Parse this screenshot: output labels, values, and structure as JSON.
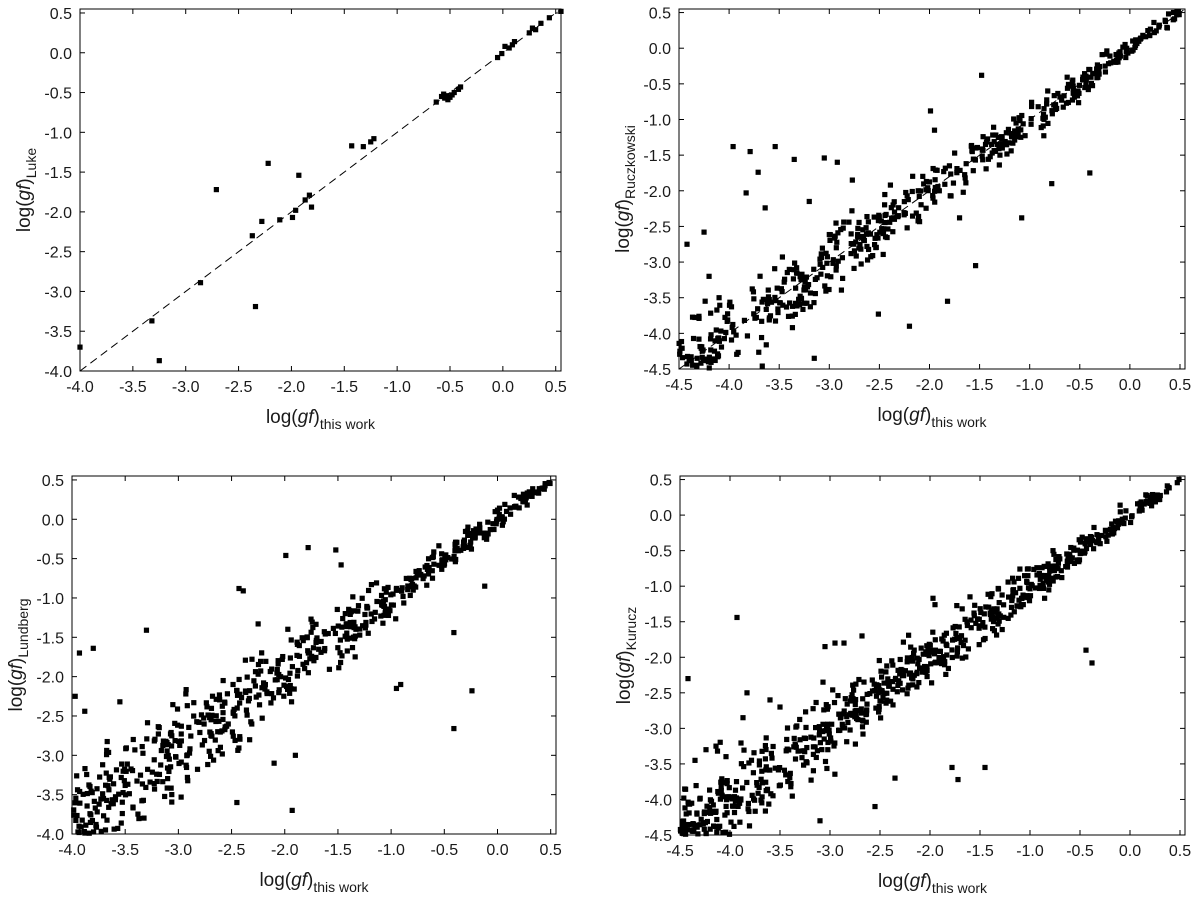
{
  "chart_data": [
    {
      "type": "scatter",
      "panel": "top-left",
      "xlabel": {
        "main": "log(",
        "ital": "gf",
        "close": ")",
        "sub": "this work"
      },
      "ylabel": {
        "main": "log(",
        "ital": "gf",
        "close": ")",
        "sub": "Luke"
      },
      "xlim": [
        -4.0,
        0.55
      ],
      "ylim": [
        -4.0,
        0.55
      ],
      "xticks": [
        -4.0,
        -3.5,
        -3.0,
        -2.5,
        -2.0,
        -1.5,
        -1.0,
        -0.5,
        0.0,
        0.5
      ],
      "yticks": [
        -4.0,
        -3.5,
        -3.0,
        -2.5,
        -2.0,
        -1.5,
        -1.0,
        -0.5,
        0.0,
        0.5
      ],
      "xtick_labels": [
        "-4.0",
        "-3.5",
        "-3.0",
        "-2.5",
        "-2.0",
        "-1.5",
        "-1.0",
        "-0.5",
        "0.0",
        "0.5"
      ],
      "ytick_labels": [
        "-4.0",
        "-3.5",
        "-3.0",
        "-2.5",
        "-2.0",
        "-1.5",
        "-1.0",
        "-0.5",
        "0.0",
        "0.5"
      ],
      "reference_line": "y = x (dashed)",
      "points": [
        [
          -4.0,
          -3.7
        ],
        [
          -3.32,
          -3.37
        ],
        [
          -3.25,
          -3.87
        ],
        [
          -2.86,
          -2.89
        ],
        [
          -2.71,
          -1.72
        ],
        [
          -2.37,
          -2.3
        ],
        [
          -2.34,
          -3.19
        ],
        [
          -2.28,
          -2.12
        ],
        [
          -2.22,
          -1.39
        ],
        [
          -2.11,
          -2.1
        ],
        [
          -1.99,
          -2.07
        ],
        [
          -1.96,
          -1.98
        ],
        [
          -1.93,
          -1.54
        ],
        [
          -1.87,
          -1.85
        ],
        [
          -1.83,
          -1.79
        ],
        [
          -1.81,
          -1.94
        ],
        [
          -1.43,
          -1.17
        ],
        [
          -1.32,
          -1.18
        ],
        [
          -1.25,
          -1.12
        ],
        [
          -1.22,
          -1.08
        ],
        [
          -0.63,
          -0.62
        ],
        [
          -0.58,
          -0.55
        ],
        [
          -0.56,
          -0.52
        ],
        [
          -0.55,
          -0.57
        ],
        [
          -0.53,
          -0.54
        ],
        [
          -0.52,
          -0.59
        ],
        [
          -0.5,
          -0.56
        ],
        [
          -0.48,
          -0.53
        ],
        [
          -0.46,
          -0.5
        ],
        [
          -0.42,
          -0.46
        ],
        [
          -0.4,
          -0.43
        ],
        [
          -0.05,
          -0.06
        ],
        [
          -0.01,
          -0.01
        ],
        [
          0.02,
          0.08
        ],
        [
          0.06,
          0.06
        ],
        [
          0.09,
          0.1
        ],
        [
          0.11,
          0.14
        ],
        [
          0.25,
          0.25
        ],
        [
          0.28,
          0.31
        ],
        [
          0.31,
          0.29
        ],
        [
          0.36,
          0.37
        ],
        [
          0.44,
          0.44
        ],
        [
          0.55,
          0.52
        ]
      ]
    },
    {
      "type": "scatter",
      "panel": "top-right",
      "xlabel": {
        "main": "log(",
        "ital": "gf",
        "close": ")",
        "sub": "this work"
      },
      "ylabel": {
        "main": "log(",
        "ital": "gf",
        "close": ")",
        "sub": "Ruczkowski"
      },
      "xlim": [
        -4.5,
        0.55
      ],
      "ylim": [
        -4.5,
        0.55
      ],
      "xticks": [
        -4.5,
        -4.0,
        -3.5,
        -3.0,
        -2.5,
        -2.0,
        -1.5,
        -1.0,
        -0.5,
        0.0,
        0.5
      ],
      "yticks": [
        -4.5,
        -4.0,
        -3.5,
        -3.0,
        -2.5,
        -2.0,
        -1.5,
        -1.0,
        -0.5,
        0.0,
        0.5
      ],
      "xtick_labels": [
        "-4.5",
        "-4.0",
        "-3.5",
        "-3.0",
        "-2.5",
        "-2.0",
        "-1.5",
        "-1.0",
        "-0.5",
        "0.0",
        "0.5"
      ],
      "ytick_labels": [
        "-4.5",
        "-4.0",
        "-3.5",
        "-3.0",
        "-2.5",
        "-2.0",
        "-1.5",
        "-1.0",
        "-0.5",
        "0.0",
        "0.5"
      ],
      "reference_line": "y = x (dashed)",
      "points": [],
      "outliers": [
        [
          -4.42,
          -2.75
        ],
        [
          -4.25,
          -2.58
        ],
        [
          -4.1,
          -3.5
        ],
        [
          -3.96,
          -1.38
        ],
        [
          -3.83,
          -2.03
        ],
        [
          -3.79,
          -1.45
        ],
        [
          -3.71,
          -1.74
        ],
        [
          -3.64,
          -2.24
        ],
        [
          -3.54,
          -1.38
        ],
        [
          -3.35,
          -1.56
        ],
        [
          -3.05,
          -1.54
        ],
        [
          -2.92,
          -1.6
        ],
        [
          -2.77,
          -1.85
        ],
        [
          -2.51,
          -3.73
        ],
        [
          -2.39,
          -1.92
        ],
        [
          -1.95,
          -1.15
        ],
        [
          -1.82,
          -3.55
        ],
        [
          -1.7,
          -2.38
        ],
        [
          -1.48,
          -0.38
        ],
        [
          -1.54,
          -3.05
        ],
        [
          -1.08,
          -2.38
        ],
        [
          -0.78,
          -1.9
        ],
        [
          -0.4,
          -1.75
        ],
        [
          -2.2,
          -3.9
        ],
        [
          -3.15,
          -4.35
        ],
        [
          -1.99,
          -0.88
        ],
        [
          -0.82,
          -0.6
        ],
        [
          -0.31,
          -0.32
        ],
        [
          -4.2,
          -3.2
        ],
        [
          -3.2,
          -2.15
        ]
      ]
    },
    {
      "type": "scatter",
      "panel": "bottom-left",
      "xlabel": {
        "main": "log(",
        "ital": "gf",
        "close": ")",
        "sub": "this work"
      },
      "ylabel": {
        "main": "log(",
        "ital": "gf",
        "close": ")",
        "sub": "Lundberg"
      },
      "xlim": [
        -4.0,
        0.55
      ],
      "ylim": [
        -4.0,
        0.55
      ],
      "xticks": [
        -4.0,
        -3.5,
        -3.0,
        -2.5,
        -2.0,
        -1.5,
        -1.0,
        -0.5,
        0.0,
        0.5
      ],
      "yticks": [
        -4.0,
        -3.5,
        -3.0,
        -2.5,
        -2.0,
        -1.5,
        -1.0,
        -0.5,
        0.0,
        0.5
      ],
      "xtick_labels": [
        "-4.0",
        "-3.5",
        "-3.0",
        "-2.5",
        "-2.0",
        "-1.5",
        "-1.0",
        "-0.5",
        "0.0",
        "0.5"
      ],
      "ytick_labels": [
        "-4.0",
        "-3.5",
        "-3.0",
        "-2.5",
        "-2.0",
        "-1.5",
        "-1.0",
        "-0.5",
        "0.0",
        "0.5"
      ],
      "reference_line": "none",
      "points": [],
      "outliers": [
        [
          -3.93,
          -1.7
        ],
        [
          -3.8,
          -1.64
        ],
        [
          -3.97,
          -2.25
        ],
        [
          -3.88,
          -2.44
        ],
        [
          -3.55,
          -2.32
        ],
        [
          -3.3,
          -1.41
        ],
        [
          -2.93,
          -2.22
        ],
        [
          -2.63,
          -2.7
        ],
        [
          -2.43,
          -0.88
        ],
        [
          -2.39,
          -0.91
        ],
        [
          -2.25,
          -1.33
        ],
        [
          -1.99,
          -0.46
        ],
        [
          -1.78,
          -0.36
        ],
        [
          -1.52,
          -0.39
        ],
        [
          -1.47,
          -0.58
        ],
        [
          -0.91,
          -2.1
        ],
        [
          -0.95,
          -2.15
        ],
        [
          -0.41,
          -1.44
        ],
        [
          -0.41,
          -2.66
        ],
        [
          -0.24,
          -2.18
        ],
        [
          -0.12,
          -0.85
        ],
        [
          -1.93,
          -3.7
        ],
        [
          -2.45,
          -3.6
        ],
        [
          -2.1,
          -3.1
        ],
        [
          -1.9,
          -3.0
        ]
      ]
    },
    {
      "type": "scatter",
      "panel": "bottom-right",
      "xlabel": {
        "main": "log(",
        "ital": "gf",
        "close": ")",
        "sub": "this work"
      },
      "ylabel": {
        "main": "log(",
        "ital": "gf",
        "close": ")",
        "sub": "Kurucz"
      },
      "xlim": [
        -4.5,
        0.55
      ],
      "ylim": [
        -4.5,
        0.55
      ],
      "xticks": [
        -4.5,
        -4.0,
        -3.5,
        -3.0,
        -2.5,
        -2.0,
        -1.5,
        -1.0,
        -0.5,
        0.0,
        0.5
      ],
      "yticks": [
        -4.5,
        -4.0,
        -3.5,
        -3.0,
        -2.5,
        -2.0,
        -1.5,
        -1.0,
        -0.5,
        0.0,
        0.5
      ],
      "xtick_labels": [
        "-4.5",
        "-4.0",
        "-3.5",
        "-3.0",
        "-2.5",
        "-2.0",
        "-1.5",
        "-1.0",
        "-0.5",
        "0.0",
        "0.5"
      ],
      "ytick_labels": [
        "-4.5",
        "-4.0",
        "-3.5",
        "-3.0",
        "-2.5",
        "-2.0",
        "-1.5",
        "-1.0",
        "-0.5",
        "0.0",
        "0.5"
      ],
      "reference_line": "none",
      "points": [],
      "outliers": [
        [
          -4.42,
          -2.3
        ],
        [
          -4.35,
          -3.45
        ],
        [
          -4.24,
          -3.3
        ],
        [
          -4.14,
          -3.25
        ],
        [
          -3.93,
          -1.44
        ],
        [
          -3.87,
          -2.85
        ],
        [
          -3.83,
          -2.5
        ],
        [
          -3.6,
          -2.6
        ],
        [
          -3.5,
          -2.7
        ],
        [
          -3.05,
          -1.85
        ],
        [
          -2.95,
          -1.8
        ],
        [
          -2.86,
          -1.8
        ],
        [
          -2.68,
          -1.7
        ],
        [
          -2.35,
          -3.7
        ],
        [
          -1.97,
          -1.17
        ],
        [
          -1.95,
          -1.26
        ],
        [
          -1.78,
          -3.55
        ],
        [
          -1.72,
          -3.72
        ],
        [
          -1.6,
          -1.15
        ],
        [
          -1.45,
          -3.55
        ],
        [
          -0.38,
          -2.08
        ],
        [
          -0.44,
          -1.9
        ],
        [
          -2.55,
          -4.1
        ],
        [
          -3.1,
          -4.3
        ],
        [
          -0.77,
          -0.5
        ]
      ]
    }
  ]
}
